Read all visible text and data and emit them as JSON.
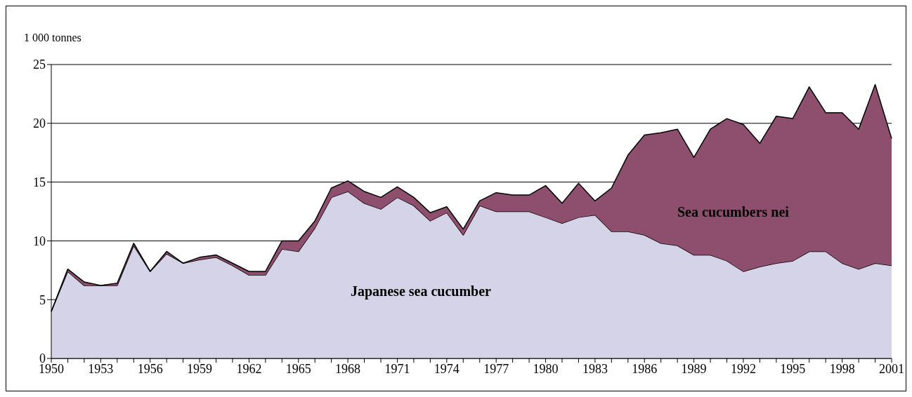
{
  "chart_data": {
    "type": "area",
    "stacked": true,
    "ylabel": "1 000 tonnes",
    "categories": [
      "1950",
      null,
      null,
      "1953",
      null,
      null,
      "1956",
      null,
      null,
      "1959",
      null,
      null,
      "1962",
      null,
      null,
      "1965",
      null,
      null,
      "1968",
      null,
      null,
      "1971",
      null,
      null,
      "1974",
      null,
      null,
      "1977",
      null,
      null,
      "1980",
      null,
      null,
      "1983",
      null,
      null,
      "1986",
      null,
      null,
      "1989",
      null,
      null,
      "1992",
      null,
      null,
      "1995",
      null,
      null,
      "1998",
      null,
      null,
      "2001"
    ],
    "series": [
      {
        "name": "Japanese sea cucumber",
        "color": "#d5d3e8",
        "values": [
          4.0,
          7.4,
          6.2,
          6.2,
          6.2,
          9.6,
          7.4,
          8.9,
          8.1,
          8.4,
          8.6,
          7.9,
          7.1,
          7.1,
          9.3,
          9.1,
          11.1,
          13.7,
          14.2,
          13.2,
          12.7,
          13.7,
          13.0,
          11.7,
          12.4,
          10.5,
          13.0,
          12.5,
          12.5,
          12.5,
          12.0,
          11.5,
          12.0,
          12.2,
          10.8,
          10.8,
          10.5,
          9.8,
          9.6,
          8.8,
          8.8,
          8.3,
          7.4,
          7.8,
          8.1,
          8.3,
          9.1,
          9.1,
          8.1,
          7.6,
          8.1,
          7.9
        ]
      },
      {
        "name": "Sea cucumbers nei",
        "color": "#8e4f6e",
        "values": [
          0,
          0.2,
          0.3,
          0,
          0.2,
          0.2,
          0,
          0.2,
          0,
          0.2,
          0.2,
          0.2,
          0.3,
          0.3,
          0.7,
          0.9,
          0.6,
          0.8,
          0.9,
          1.0,
          1.0,
          0.9,
          0.7,
          0.7,
          0.5,
          0.5,
          0.4,
          1.6,
          1.4,
          1.4,
          2.7,
          1.7,
          2.9,
          1.2,
          3.7,
          6.5,
          8.5,
          9.4,
          9.9,
          8.3,
          10.7,
          12.1,
          12.5,
          10.5,
          12.5,
          12.1,
          14.0,
          11.8,
          12.8,
          11.9,
          15.2,
          10.8
        ]
      }
    ],
    "ylim": [
      0,
      25
    ],
    "yticks": [
      0,
      5,
      10,
      15,
      20,
      25
    ],
    "grid": "y",
    "line_style": "solid"
  }
}
